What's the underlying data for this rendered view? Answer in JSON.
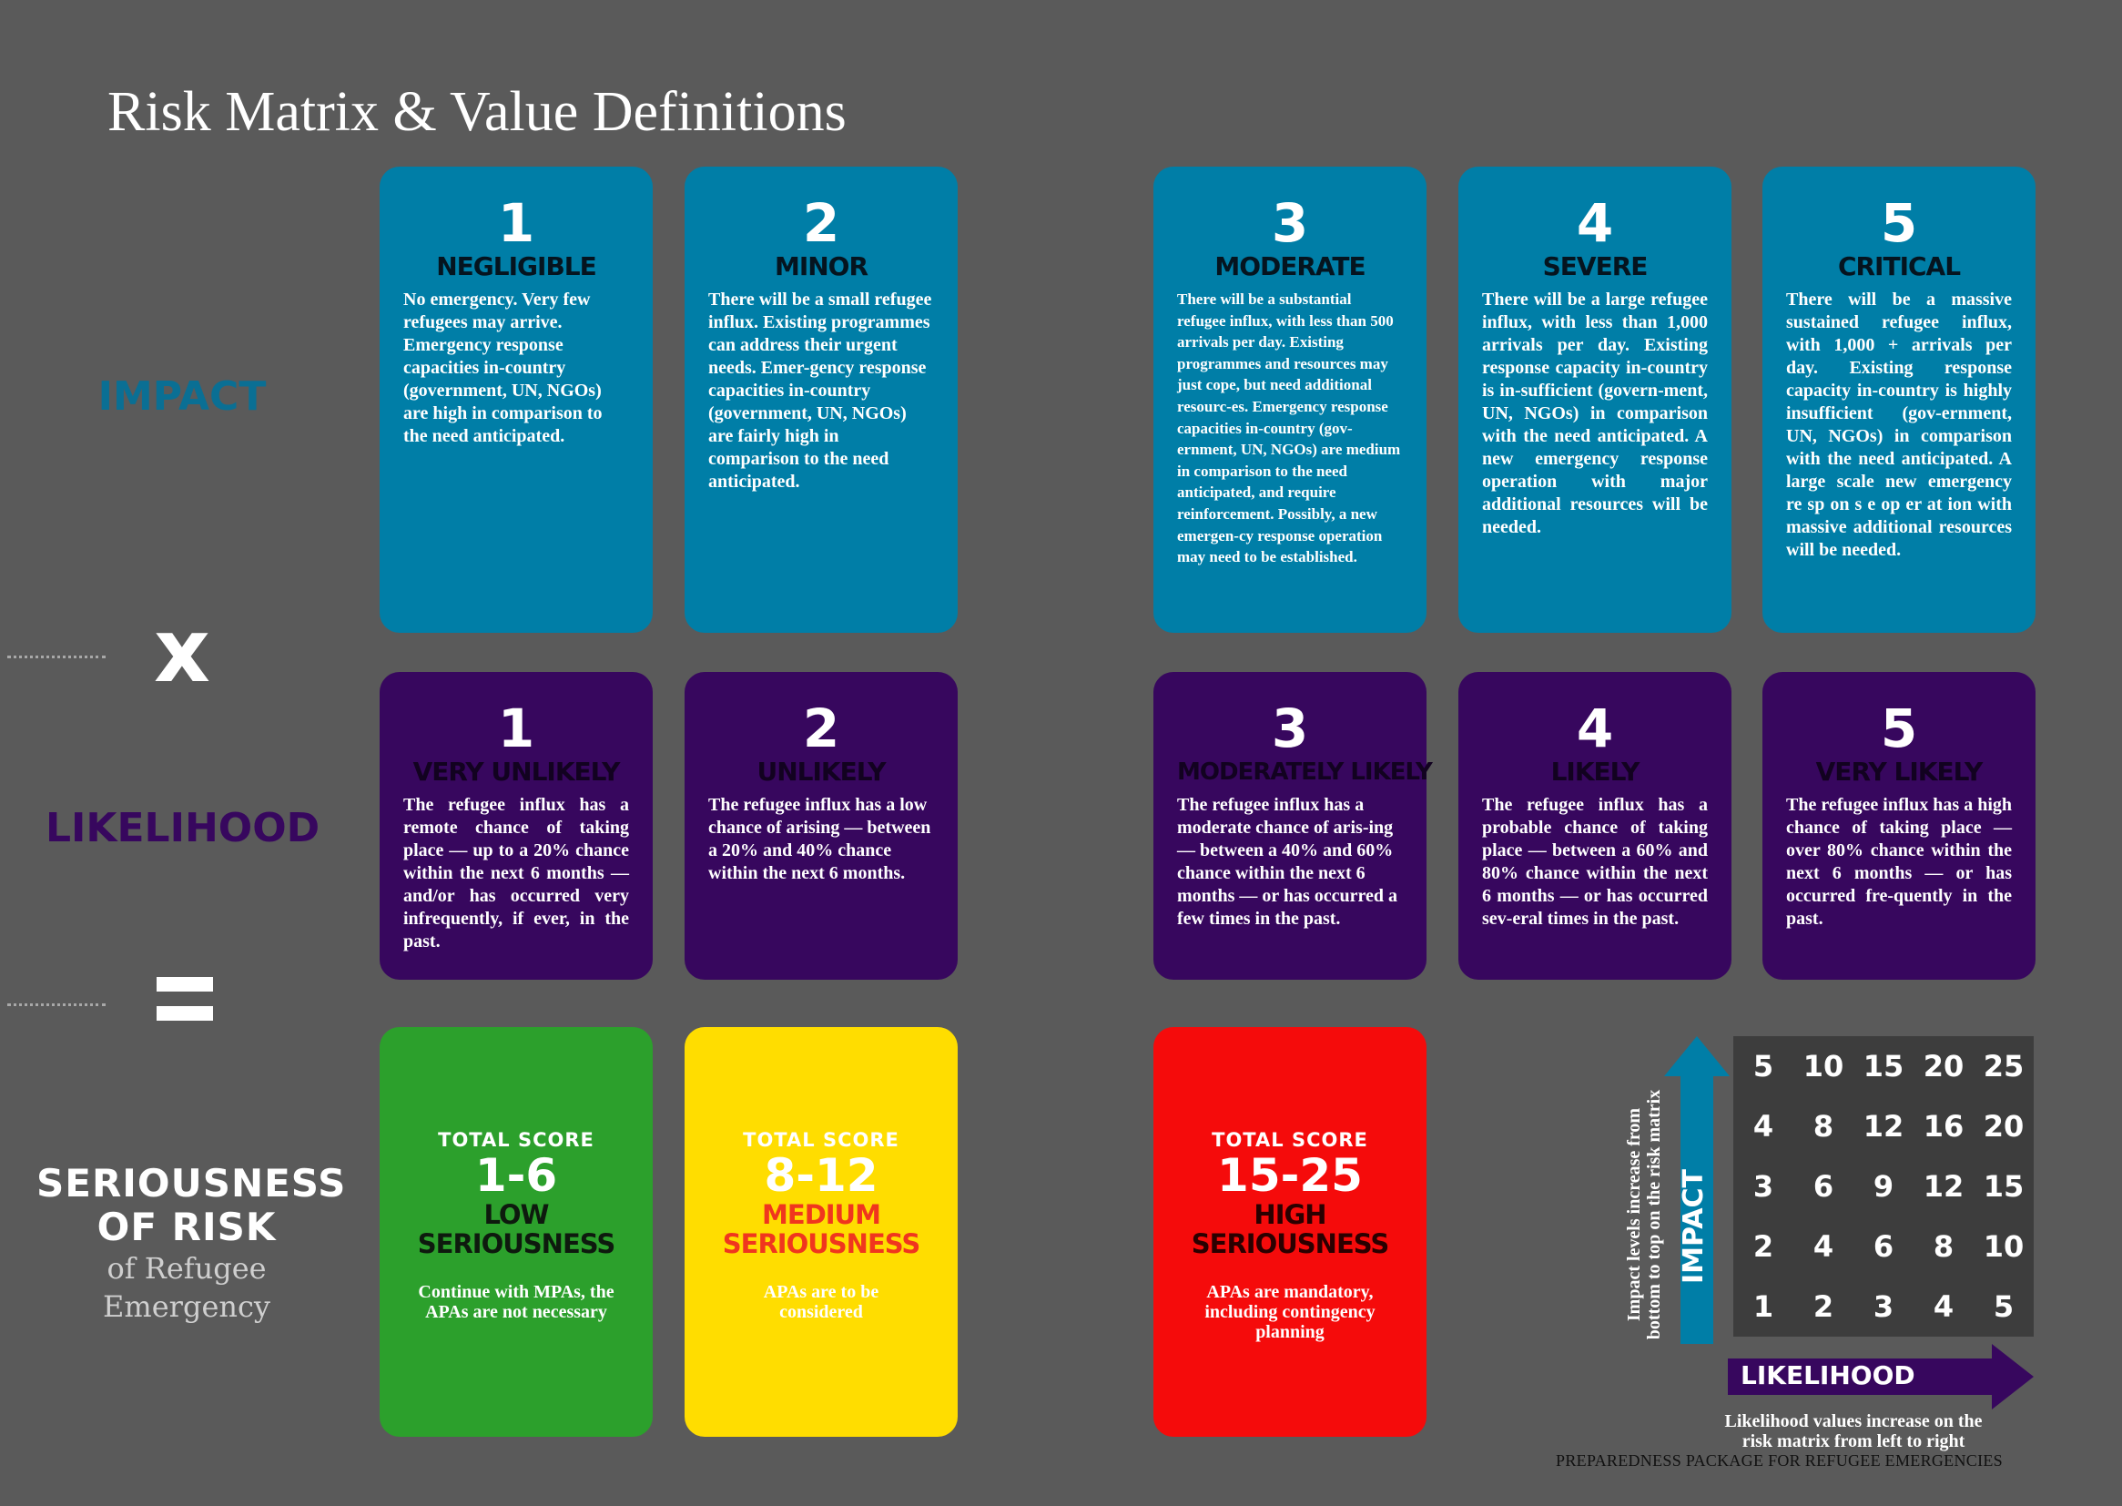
{
  "title": "Risk Matrix & Value Definitions",
  "side": {
    "impact_label": "IMPACT",
    "times_symbol": "x",
    "likelihood_label": "LIKELIHOOD",
    "equals_symbol": "=",
    "seriousness_line1": "SERIOUSNESS",
    "seriousness_line2": "OF RISK",
    "seriousness_sub1": "of Refugee",
    "seriousness_sub2": "Emergency"
  },
  "impact": [
    {
      "num": "1",
      "level": "NEGLIGIBLE",
      "desc": "No emergency. Very few refugees may arrive. Emergency response capacities in-country (government, UN, NGOs) are high in comparison to the need anticipated."
    },
    {
      "num": "2",
      "level": "MINOR",
      "desc": "There will be a small refugee influx. Existing programmes can address their urgent needs. Emer-gency response capacities in-country (government, UN, NGOs) are fairly high in comparison to the need anticipated."
    },
    {
      "num": "3",
      "level": "MODERATE",
      "desc": "There will be a substantial refugee influx, with less than 500 arrivals per day. Existing programmes and resources may just cope, but need additional resourc-es. Emergency response capacities in-country (gov-ernment, UN, NGOs) are medium in comparison to the need anticipated, and require reinforcement. Possibly, a new emergen-cy response operation may need to be established."
    },
    {
      "num": "4",
      "level": "SEVERE",
      "desc": "There will be a large refugee influx, with less than 1,000 arrivals per day. Existing response capacity in-country is in-sufficient (govern-ment, UN, NGOs) in comparison with the need anticipated. A new emergency response operation with major additional resources will be needed."
    },
    {
      "num": "5",
      "level": "CRITICAL",
      "desc": "There will be a massive sustained refugee influx, with 1,000 + arrivals per day. Existing response capacity in-country is highly insufficient (gov-ernment, UN, NGOs) in comparison with the need anticipated. A large scale new emergency re sp on s e op er at ion with massive additional resources will be needed."
    }
  ],
  "likelihood": [
    {
      "num": "1",
      "level": "VERY UNLIKELY",
      "desc": "The refugee influx has a remote chance of taking place — up to a 20% chance within the next 6 months — and/or has occurred very infrequently, if ever, in the past."
    },
    {
      "num": "2",
      "level": "UNLIKELY",
      "desc": "The refugee influx has a low chance of arising — between a 20% and 40% chance within the next 6 months."
    },
    {
      "num": "3",
      "level": "MODERATELY LIKELY",
      "desc": "The refugee influx has a moderate chance of aris-ing — between a 40% and 60% chance within the next 6 months — or has occurred a few times in the past."
    },
    {
      "num": "4",
      "level": "LIKELY",
      "desc": "The refugee influx has a probable chance of taking place — between a 60% and 80% chance within the next 6 months — or has occurred sev-eral times in the past."
    },
    {
      "num": "5",
      "level": "VERY LIKELY",
      "desc": "The refugee influx has a high chance of taking place — over 80% chance within the next 6 months — or has occurred fre-quently in the past."
    }
  ],
  "scores": [
    {
      "label": "TOTAL SCORE",
      "range": "1-6",
      "sev1": "LOW",
      "sev2": "SERIOUSNESS",
      "note": "Continue with MPAs, the APAs are not necessary",
      "color": "#2ca02c",
      "sev_color": "#0e1a0e"
    },
    {
      "label": "TOTAL SCORE",
      "range": "8-12",
      "sev1": "MEDIUM",
      "sev2": "SERIOUSNESS",
      "note": "APAs are to be considered",
      "color": "#ffdd00",
      "sev_color": "#f0361e"
    },
    {
      "label": "TOTAL SCORE",
      "range": "15-25",
      "sev1": "HIGH",
      "sev2": "SERIOUSNESS",
      "note": "APAs are mandatory, including contingency planning",
      "color": "#f50b0b",
      "sev_color": "#2a0000"
    }
  ],
  "matrix": {
    "rows": [
      [
        "5",
        "10",
        "15",
        "20",
        "25"
      ],
      [
        "4",
        "8",
        "12",
        "16",
        "20"
      ],
      [
        "3",
        "6",
        "9",
        "12",
        "15"
      ],
      [
        "2",
        "4",
        "6",
        "8",
        "10"
      ],
      [
        "1",
        "2",
        "3",
        "4",
        "5"
      ]
    ],
    "impact_axis_label": "IMPACT",
    "impact_note_line1": "Impact levels increase from",
    "impact_note_line2": "bottom to top on the risk matrix",
    "likelihood_axis_label": "LIKELIHOOD",
    "likelihood_note_line1": "Likelihood values increase on the",
    "likelihood_note_line2": "risk matrix from left to right"
  },
  "footer": "PREPAREDNESS PACKAGE FOR REFUGEE EMERGENCIES",
  "colors": {
    "background": "#5a5a5a",
    "impact": "#007ea7",
    "likelihood": "#37075e",
    "matrix": "#3d3d3d"
  }
}
